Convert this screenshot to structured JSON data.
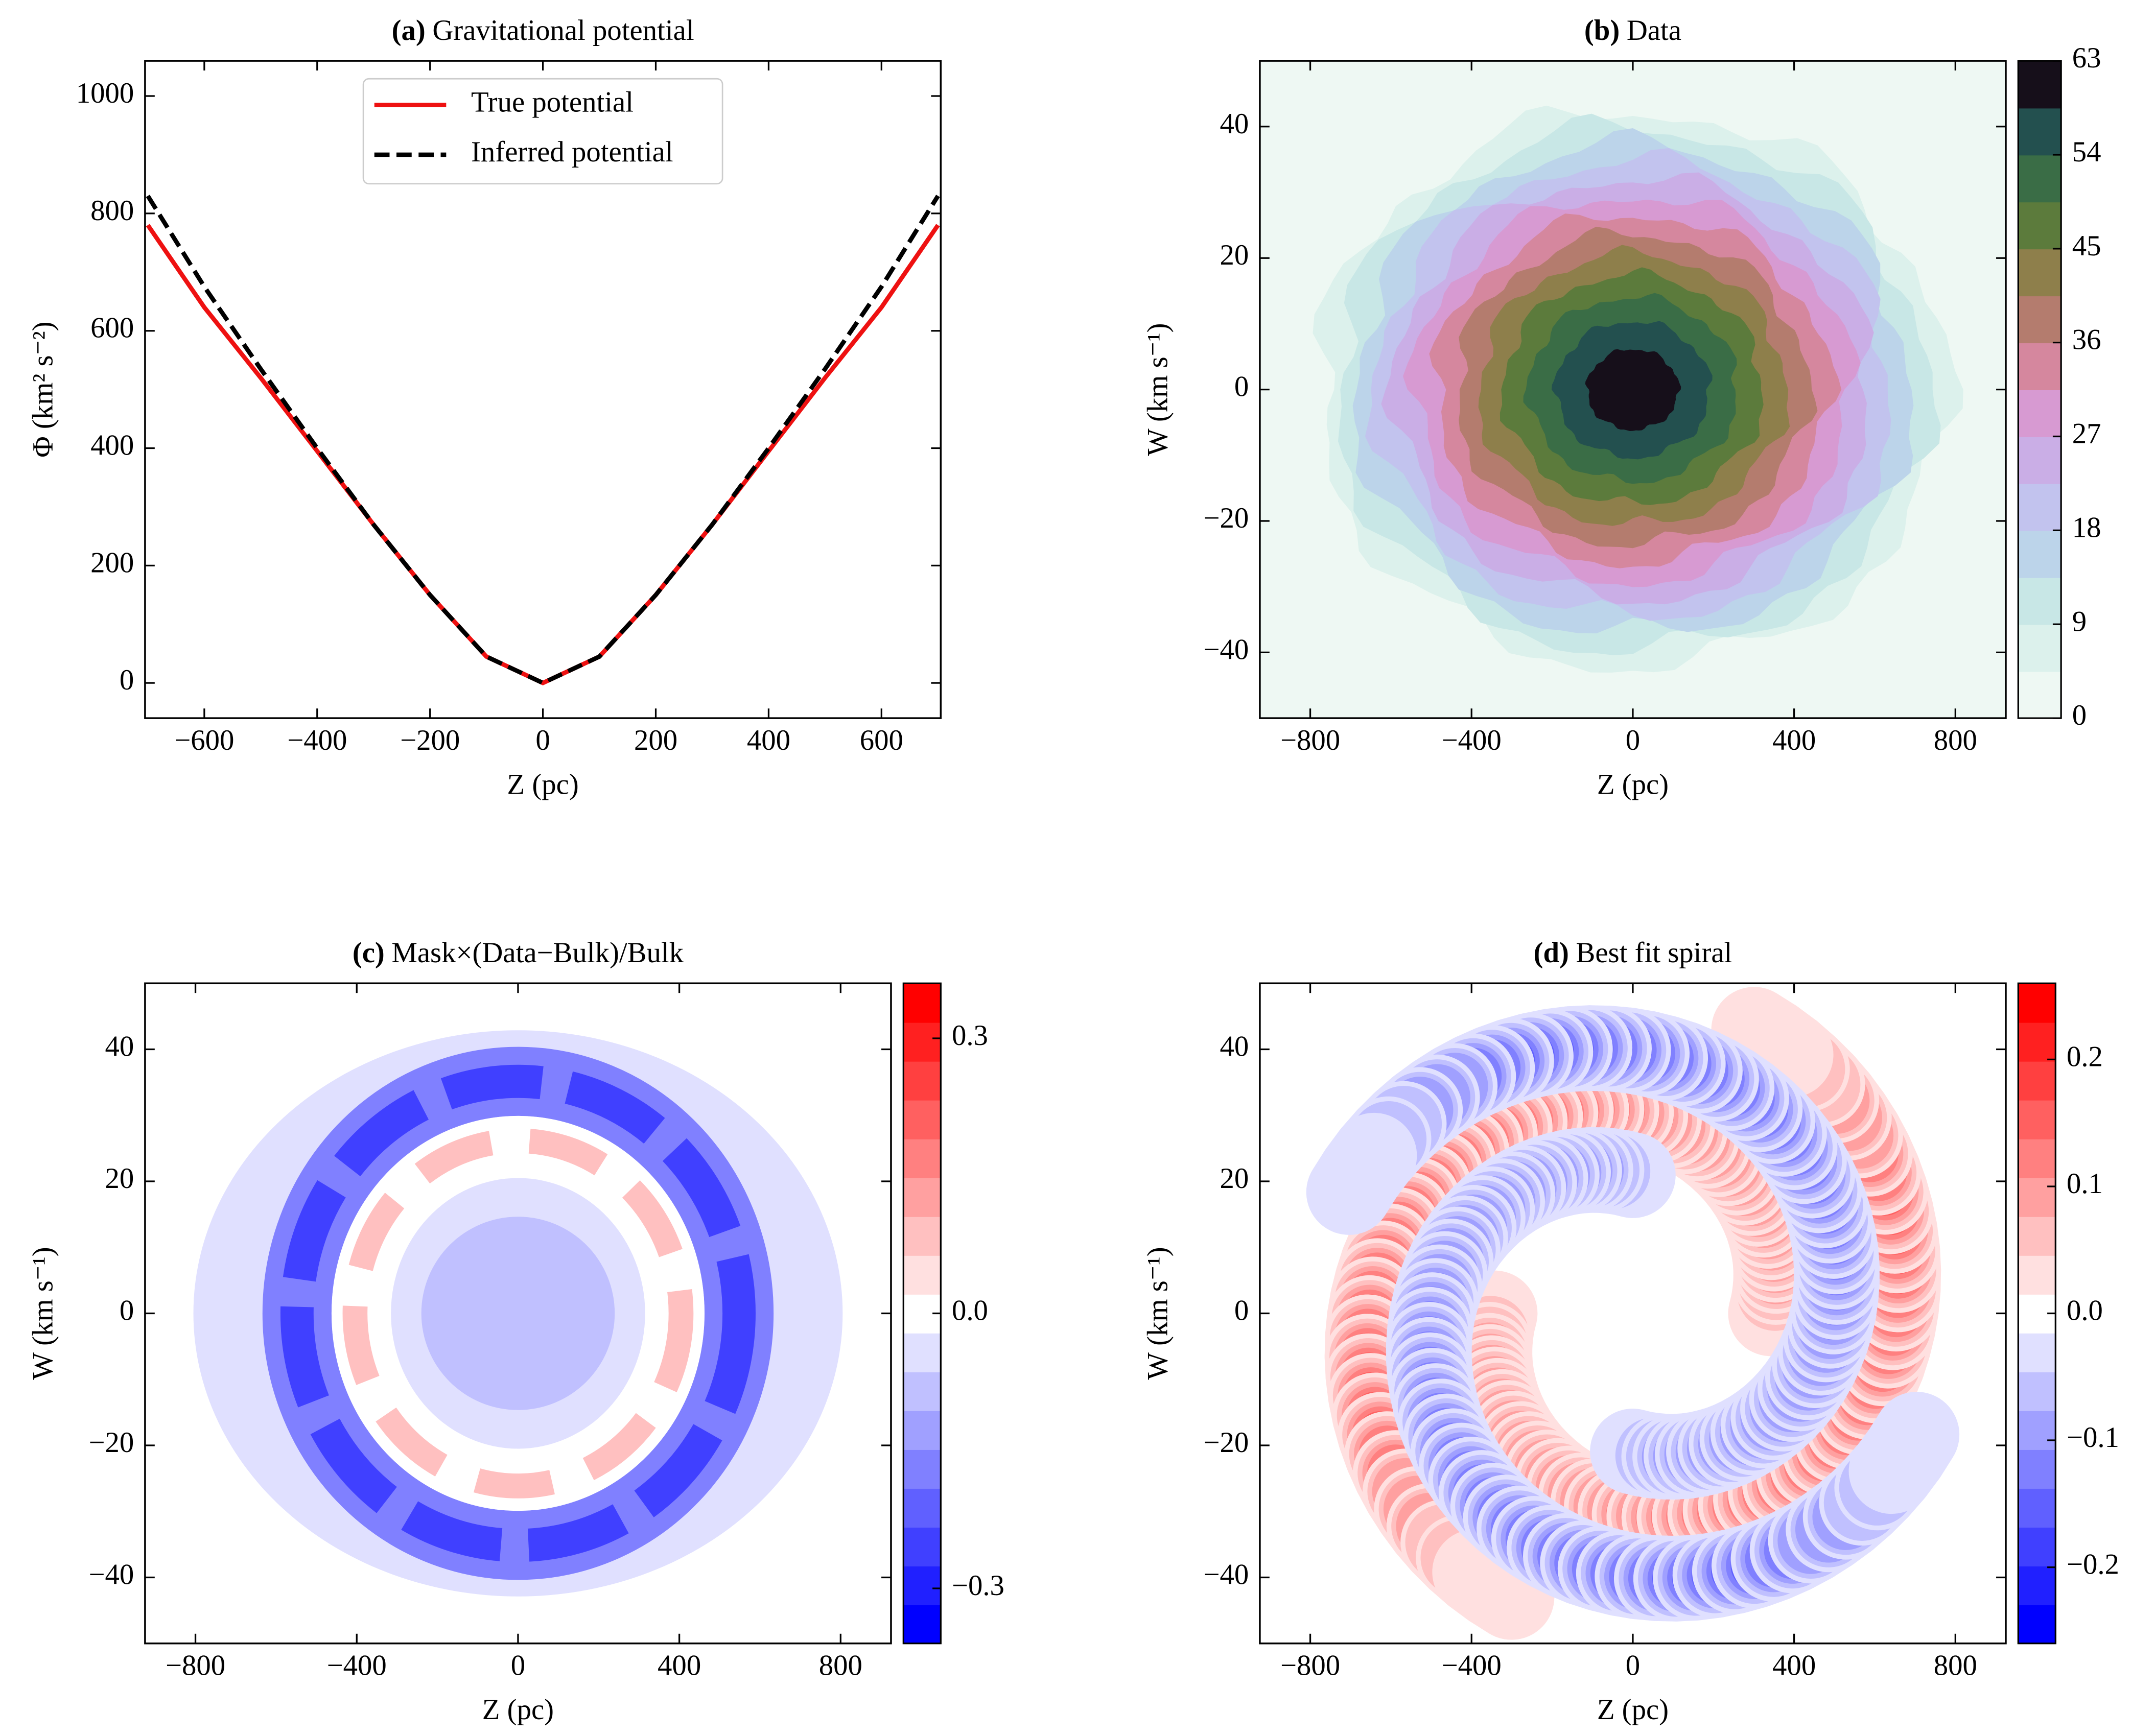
{
  "chart_data": [
    {
      "type": "line",
      "panel": "(a)",
      "title": "Gravitational potential",
      "xlabel": "Z (pc)",
      "ylabel": "Φ (km² s⁻²)",
      "x": [
        -700,
        -600,
        -500,
        -400,
        -300,
        -200,
        -100,
        0,
        100,
        200,
        300,
        400,
        500,
        600,
        700
      ],
      "series": [
        {
          "name": "True potential",
          "color": "#ee1111",
          "linestyle": "solid",
          "values": [
            780,
            640,
            520,
            395,
            270,
            150,
            45,
            0,
            45,
            150,
            270,
            395,
            520,
            640,
            780
          ]
        },
        {
          "name": "Inferred potential",
          "color": "#000000",
          "linestyle": "dashed",
          "values": [
            830,
            675,
            535,
            400,
            270,
            150,
            45,
            0,
            45,
            150,
            270,
            400,
            535,
            675,
            830
          ]
        }
      ],
      "xlim": [
        -705,
        705
      ],
      "ylim": [
        -60,
        1060
      ],
      "xticks": [
        {
          "value": -600,
          "label": "−600"
        },
        {
          "value": -400,
          "label": "−400"
        },
        {
          "value": -200,
          "label": "−200"
        },
        0,
        200,
        400,
        600
      ],
      "yticks": [
        0,
        200,
        400,
        600,
        800,
        1000
      ],
      "legend": "upper center"
    },
    {
      "type": "contour",
      "panel": "(b)",
      "title": "Data",
      "xlabel": "Z (pc)",
      "ylabel": "W (km s⁻¹)",
      "xlim": [
        -925,
        925
      ],
      "ylim": [
        -50,
        50
      ],
      "xticks": [
        {
          "value": -800,
          "label": "−800"
        },
        {
          "value": -400,
          "label": "−400"
        },
        0,
        400,
        800
      ],
      "yticks": [
        {
          "value": -40,
          "label": "−40"
        },
        {
          "value": -20,
          "label": "−20"
        },
        0,
        20,
        40
      ],
      "colorbar": {
        "clim": [
          0,
          63
        ],
        "ticks": [
          0,
          9,
          18,
          27,
          36,
          45,
          54,
          63
        ],
        "colors": [
          "#eef8f3",
          "#dcf1ec",
          "#c8e7e6",
          "#bcd4ea",
          "#c2c3ee",
          "#caaee6",
          "#d79ad2",
          "#d5879e",
          "#b47c6e",
          "#8e7f4b",
          "#5c7b3c",
          "#3a6d46",
          "#23504f",
          "#160f1a"
        ]
      }
    },
    {
      "type": "contour",
      "panel": "(c)",
      "title": "Mask×(Data−Bulk)/Bulk",
      "xlabel": "Z (pc)",
      "ylabel": "W (km s⁻¹)",
      "xlim": [
        -925,
        925
      ],
      "ylim": [
        -50,
        50
      ],
      "xticks": [
        {
          "value": -800,
          "label": "−800"
        },
        {
          "value": -400,
          "label": "−400"
        },
        0,
        400,
        800
      ],
      "yticks": [
        {
          "value": -40,
          "label": "−40"
        },
        {
          "value": -20,
          "label": "−20"
        },
        0,
        20,
        40
      ],
      "colorbar": {
        "clim": [
          -0.36,
          0.36
        ],
        "ticks": [
          {
            "value": -0.3,
            "label": "−0.3"
          },
          {
            "value": 0,
            "label": "0.0"
          },
          {
            "value": 0.3,
            "label": "0.3"
          }
        ],
        "colors": [
          "#0000ff",
          "#2020ff",
          "#4040ff",
          "#6060ff",
          "#8080ff",
          "#a0a0ff",
          "#c0c0ff",
          "#e0e0ff",
          "#ffffff",
          "#ffe0e0",
          "#ffc0c0",
          "#ffa0a0",
          "#ff8080",
          "#ff6060",
          "#ff4040",
          "#ff2020",
          "#ff0000"
        ]
      }
    },
    {
      "type": "contour",
      "panel": "(d)",
      "title": "Best fit spiral",
      "xlabel": "Z (pc)",
      "ylabel": "W (km s⁻¹)",
      "xlim": [
        -925,
        925
      ],
      "ylim": [
        -50,
        50
      ],
      "xticks": [
        {
          "value": -800,
          "label": "−800"
        },
        {
          "value": -400,
          "label": "−400"
        },
        0,
        400,
        800
      ],
      "yticks": [
        {
          "value": -40,
          "label": "−40"
        },
        {
          "value": -20,
          "label": "−20"
        },
        0,
        20,
        40
      ],
      "colorbar": {
        "clim": [
          -0.26,
          0.26
        ],
        "ticks": [
          {
            "value": -0.2,
            "label": "−0.2"
          },
          {
            "value": -0.1,
            "label": "−0.1"
          },
          {
            "value": 0,
            "label": "0.0"
          },
          {
            "value": 0.1,
            "label": "0.1"
          },
          {
            "value": 0.2,
            "label": "0.2"
          }
        ],
        "colors": [
          "#0000ff",
          "#2020ff",
          "#4040ff",
          "#6060ff",
          "#8080ff",
          "#a0a0ff",
          "#c0c0ff",
          "#e0e0ff",
          "#ffffff",
          "#ffe0e0",
          "#ffc0c0",
          "#ffa0a0",
          "#ff8080",
          "#ff6060",
          "#ff4040",
          "#ff2020",
          "#ff0000"
        ]
      }
    }
  ]
}
